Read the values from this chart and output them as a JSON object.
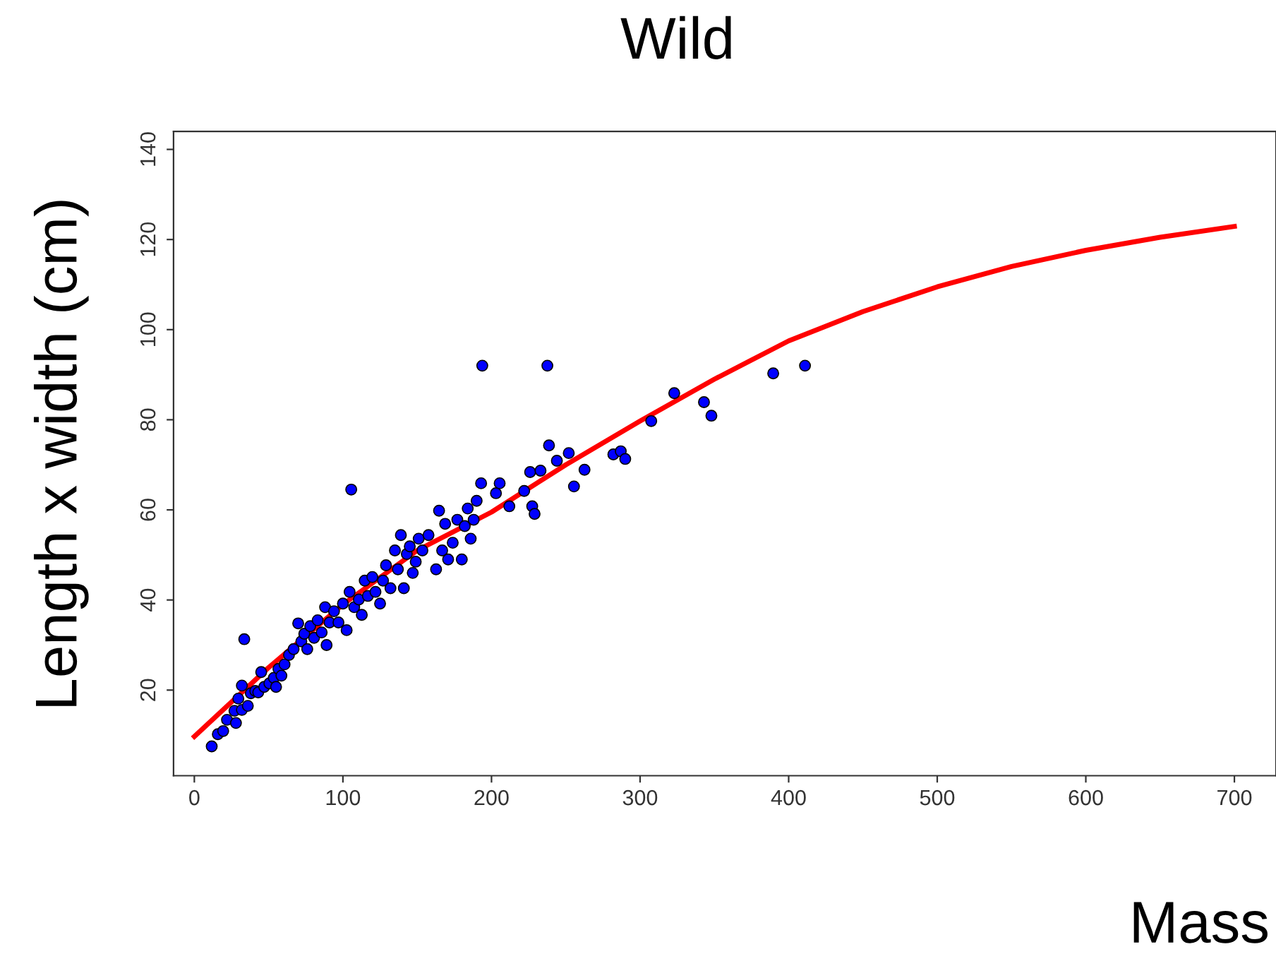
{
  "chart_data": {
    "type": "scatter",
    "title": "Wild",
    "xlabel": "Mass",
    "ylabel": "Length x width (cm)",
    "xlim": [
      -14,
      728
    ],
    "ylim": [
      1,
      144
    ],
    "xticks": [
      0,
      100,
      200,
      300,
      400,
      500,
      600,
      700
    ],
    "yticks": [
      20,
      40,
      60,
      80,
      100,
      120,
      140
    ],
    "grid": false,
    "legend": false,
    "marker": "circle",
    "series": [
      {
        "color": "#0000ff",
        "x": [
          11.7,
          15.8,
          19.4,
          22,
          28,
          27,
          29.6,
          32,
          33.6,
          32,
          36,
          38,
          41,
          43,
          45,
          47,
          50.5,
          53.5,
          55,
          56.6,
          58.6,
          60.7,
          63.7,
          66.8,
          69.9,
          72,
          74,
          76,
          78,
          80.6,
          83,
          85.7,
          88,
          89,
          91,
          94,
          97,
          100,
          102.5,
          104.5,
          105.6,
          107.6,
          110.7,
          112.7,
          114.7,
          116.8,
          119.8,
          121.9,
          125,
          127,
          129,
          132,
          135,
          137,
          139,
          141,
          143,
          145,
          147,
          149,
          151,
          153.5,
          157.6,
          162.7,
          164.7,
          166.8,
          168.8,
          170.8,
          173.9,
          177,
          180,
          182,
          184,
          186,
          188,
          190,
          193,
          193.8,
          203,
          205.5,
          212,
          222,
          226,
          227.4,
          229,
          233,
          237.6,
          238.7,
          244,
          252,
          255.5,
          262.6,
          282,
          287,
          290,
          307.5,
          323,
          343,
          348,
          389.6,
          411
        ],
        "values": [
          7.5,
          10.2,
          10.9,
          13.4,
          12.7,
          15.4,
          18.1,
          15.6,
          31.3,
          21,
          16.5,
          19.3,
          19.8,
          19.5,
          24,
          20.7,
          21.5,
          22.7,
          20.7,
          24.7,
          23.2,
          25.7,
          27.8,
          29.1,
          34.8,
          30.8,
          32.5,
          29.1,
          34.2,
          31.6,
          35.5,
          32.8,
          38.4,
          30,
          35,
          37.5,
          35,
          39.2,
          33.3,
          41.8,
          64.5,
          38.4,
          40.1,
          36.7,
          44.3,
          40.9,
          45.1,
          41.8,
          39.2,
          44.3,
          47.7,
          42.6,
          51,
          46.8,
          54.4,
          42.6,
          50.2,
          51.9,
          46,
          48.5,
          53.6,
          51,
          54.4,
          46.8,
          59.8,
          51,
          56.9,
          49,
          52.7,
          57.8,
          49,
          56.4,
          60.3,
          53.6,
          57.8,
          62,
          65.9,
          92,
          63.7,
          65.9,
          60.8,
          64.2,
          68.4,
          60.8,
          59.1,
          68.7,
          92,
          74.3,
          70.9,
          72.6,
          65.2,
          68.9,
          72.3,
          73,
          71.3,
          79.7,
          85.9,
          83.9,
          80.9,
          90.3,
          92
        ]
      },
      {
        "type": "line",
        "marker": "none",
        "color": "#ff0000",
        "x": [
          0,
          50,
          100,
          150,
          200,
          250,
          300,
          350,
          400,
          450,
          500,
          550,
          600,
          650,
          700
        ],
        "values": [
          9.7,
          25,
          39,
          51,
          59.5,
          70,
          79.7,
          89,
          97.5,
          104,
          109.5,
          114,
          117.6,
          120.5,
          122.9
        ]
      }
    ]
  }
}
